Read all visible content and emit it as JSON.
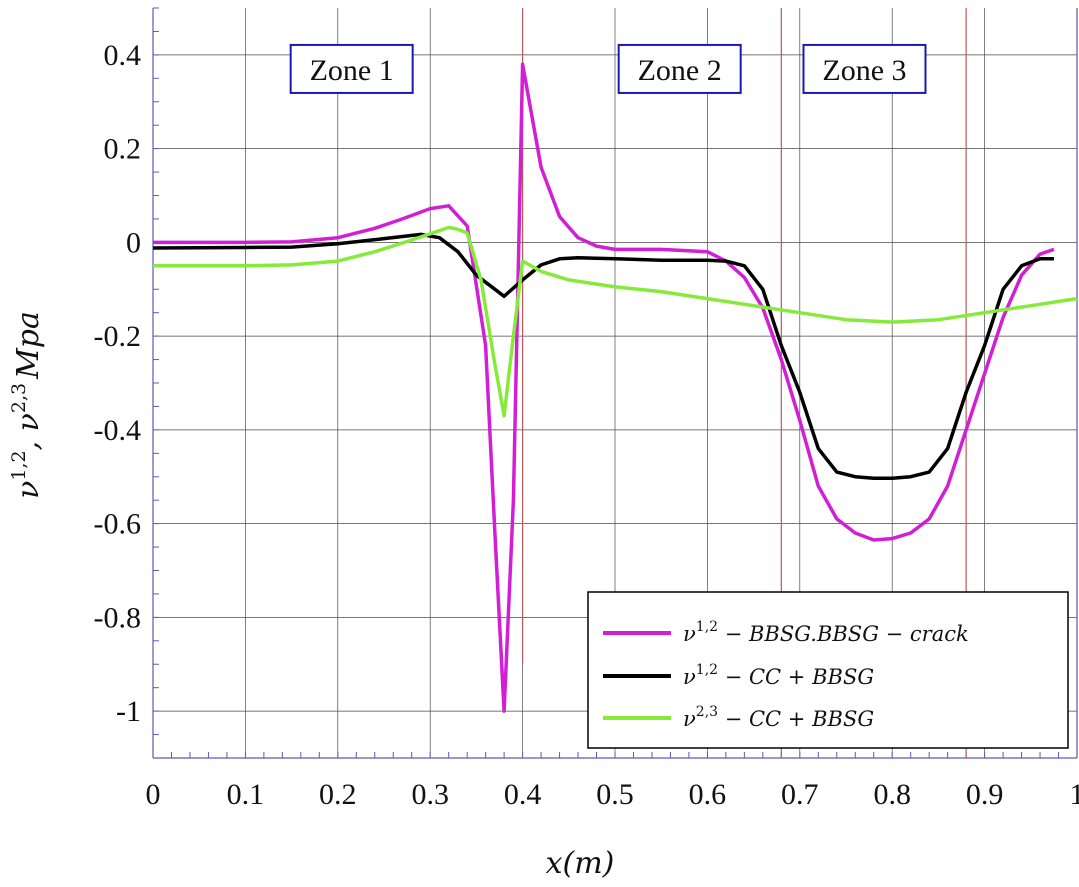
{
  "chart_data": {
    "type": "line",
    "xlabel": "x(m)",
    "ylabel": "ν1,2, ν2,3 Mpa",
    "ylabel_parts": {
      "nu": "ν",
      "sup1": "1,2",
      "sep": ", ",
      "sup2": "2,3",
      "unit": "Mpa"
    },
    "xlim": [
      0,
      1
    ],
    "ylim": [
      -1.1,
      0.5
    ],
    "x_ticks": [
      0,
      0.1,
      0.2,
      0.3,
      0.4,
      0.5,
      0.6,
      0.7,
      0.8,
      0.9,
      1
    ],
    "x_tick_labels": [
      "0",
      "0.1",
      "0.2",
      "0.3",
      "0.4",
      "0.5",
      "0.6",
      "0.7",
      "0.8",
      "0.9",
      "1"
    ],
    "y_ticks": [
      -1,
      -0.8,
      -0.6,
      -0.4,
      -0.2,
      0,
      0.2,
      0.4
    ],
    "y_tick_labels": [
      "-1",
      "-0.8",
      "-0.6",
      "-0.4",
      "-0.2",
      "0",
      "0.2",
      "0.4"
    ],
    "grid": true,
    "legend_position": "bottom-right",
    "vertical_markers": [
      {
        "x": 0.4,
        "y_range": [
          -0.9,
          0.5
        ]
      },
      {
        "x": 0.68,
        "y_range": [
          -1.1,
          0.5
        ]
      },
      {
        "x": 0.88,
        "y_range": [
          -1.1,
          0.5
        ]
      }
    ],
    "annotations": [
      {
        "text": "Zone 1",
        "x": 0.215,
        "y": 0.37
      },
      {
        "text": "Zone 2",
        "x": 0.57,
        "y": 0.37
      },
      {
        "text": "Zone 3",
        "x": 0.77,
        "y": 0.37
      }
    ],
    "series": [
      {
        "name": "ν1,2 − BBSG.BBSG − crack",
        "legend_parts": {
          "nu": "ν",
          "sup": "1,2",
          "rest": " − BBSG.BBSG − crack"
        },
        "color": "#d21fd6",
        "x": [
          0,
          0.1,
          0.15,
          0.2,
          0.24,
          0.27,
          0.3,
          0.32,
          0.34,
          0.36,
          0.37,
          0.38,
          0.39,
          0.4,
          0.42,
          0.44,
          0.46,
          0.48,
          0.5,
          0.55,
          0.6,
          0.62,
          0.64,
          0.66,
          0.68,
          0.7,
          0.72,
          0.74,
          0.76,
          0.78,
          0.8,
          0.82,
          0.84,
          0.86,
          0.88,
          0.9,
          0.92,
          0.94,
          0.96,
          0.975
        ],
        "y": [
          0,
          0,
          0.001,
          0.01,
          0.03,
          0.05,
          0.072,
          0.078,
          0.035,
          -0.22,
          -0.62,
          -1.0,
          -0.55,
          0.38,
          0.16,
          0.055,
          0.01,
          -0.008,
          -0.015,
          -0.015,
          -0.02,
          -0.04,
          -0.075,
          -0.14,
          -0.25,
          -0.38,
          -0.52,
          -0.59,
          -0.62,
          -0.635,
          -0.632,
          -0.62,
          -0.59,
          -0.52,
          -0.4,
          -0.28,
          -0.16,
          -0.07,
          -0.025,
          -0.015
        ]
      },
      {
        "name": "ν1,2 − CC + BBSG",
        "legend_parts": {
          "nu": "ν",
          "sup": "1,2",
          "rest": " − CC + BBSG"
        },
        "color": "#000000",
        "x": [
          0,
          0.1,
          0.15,
          0.2,
          0.25,
          0.29,
          0.31,
          0.33,
          0.35,
          0.38,
          0.4,
          0.42,
          0.44,
          0.46,
          0.5,
          0.55,
          0.6,
          0.62,
          0.64,
          0.66,
          0.68,
          0.7,
          0.72,
          0.74,
          0.76,
          0.78,
          0.8,
          0.82,
          0.84,
          0.86,
          0.88,
          0.9,
          0.92,
          0.94,
          0.96,
          0.975
        ],
        "y": [
          -0.012,
          -0.011,
          -0.01,
          -0.003,
          0.008,
          0.017,
          0.01,
          -0.02,
          -0.07,
          -0.115,
          -0.08,
          -0.048,
          -0.035,
          -0.033,
          -0.035,
          -0.038,
          -0.038,
          -0.04,
          -0.05,
          -0.1,
          -0.22,
          -0.32,
          -0.44,
          -0.49,
          -0.5,
          -0.503,
          -0.503,
          -0.5,
          -0.49,
          -0.44,
          -0.32,
          -0.22,
          -0.1,
          -0.05,
          -0.035,
          -0.035
        ]
      },
      {
        "name": "ν2,3 − CC + BBSG",
        "legend_parts": {
          "nu": "ν",
          "sup": "2,3",
          "rest": " − CC + BBSG"
        },
        "color": "#86ea3b",
        "x": [
          0,
          0.1,
          0.15,
          0.2,
          0.24,
          0.28,
          0.31,
          0.32,
          0.33,
          0.34,
          0.355,
          0.37,
          0.38,
          0.39,
          0.4,
          0.42,
          0.45,
          0.5,
          0.55,
          0.6,
          0.65,
          0.7,
          0.75,
          0.8,
          0.85,
          0.9,
          0.95,
          1.0
        ],
        "y": [
          -0.05,
          -0.05,
          -0.048,
          -0.04,
          -0.02,
          0.005,
          0.025,
          0.032,
          0.028,
          0.02,
          -0.08,
          -0.26,
          -0.37,
          -0.2,
          -0.04,
          -0.062,
          -0.08,
          -0.095,
          -0.105,
          -0.12,
          -0.135,
          -0.15,
          -0.165,
          -0.17,
          -0.165,
          -0.15,
          -0.135,
          -0.12
        ]
      }
    ]
  }
}
